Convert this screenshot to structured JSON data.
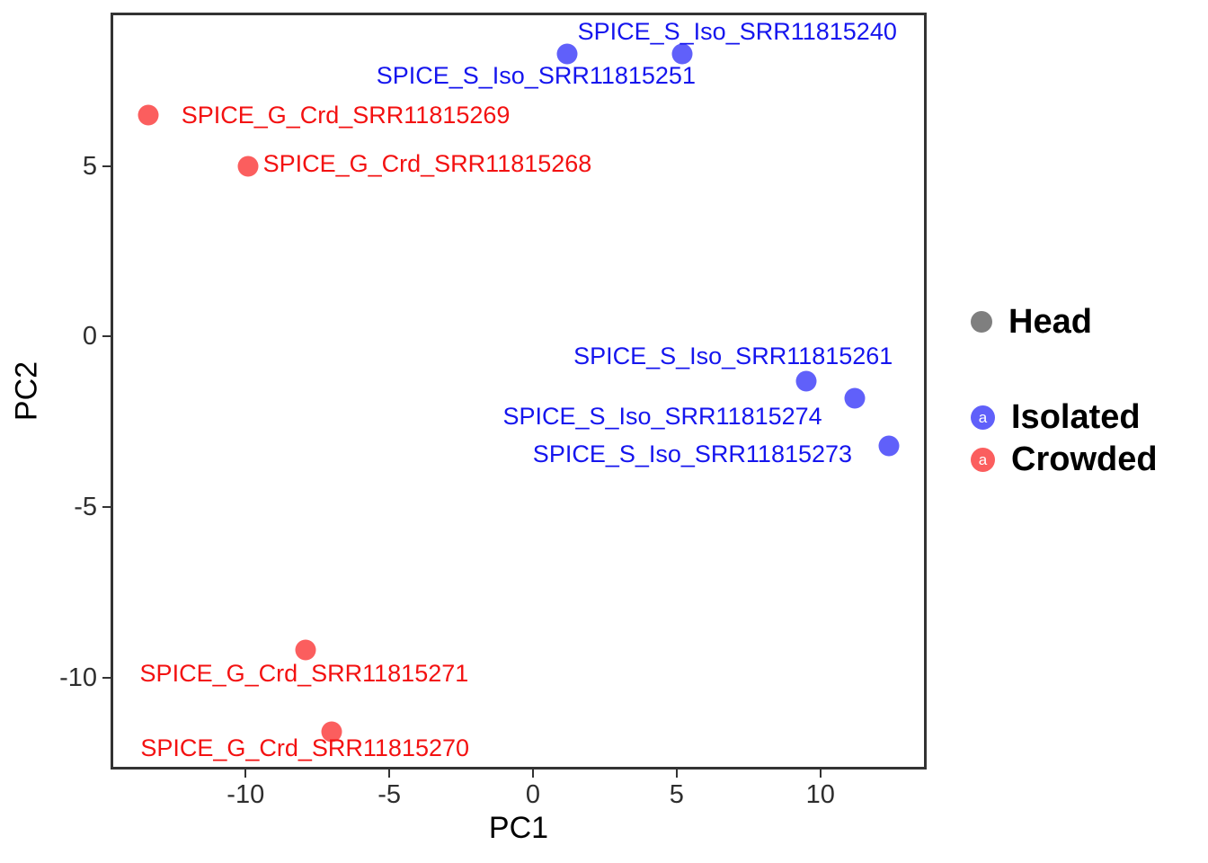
{
  "legend": {
    "head": {
      "label": "Head",
      "swatch_color": "#7F7F7F"
    },
    "entries": [
      {
        "label": "Isolated",
        "glyph": "a",
        "color": "#6060FA"
      },
      {
        "label": "Crowded",
        "glyph": "a",
        "color": "#FB5E5E"
      }
    ]
  },
  "chart_data": {
    "type": "scatter",
    "title": "",
    "xlabel": "PC1",
    "ylabel": "PC2",
    "xlim": [
      -14.7,
      13.7
    ],
    "ylim": [
      -12.7,
      9.5
    ],
    "x_ticks": [
      -10,
      -5,
      0,
      5,
      10
    ],
    "y_ticks": [
      5,
      0,
      -5,
      -10
    ],
    "grid": false,
    "legend_position": "right",
    "series": [
      {
        "name": "Isolated",
        "point_color": "#6060FA",
        "label_color": "#1515EE",
        "points": [
          {
            "sample": "SPICE_S_Iso_SRR11815251",
            "x": 1.2,
            "y": 8.3,
            "label_dx": -35,
            "label_dy": 25
          },
          {
            "sample": "SPICE_S_Iso_SRR11815240",
            "x": 5.2,
            "y": 8.3,
            "label_dx": 61,
            "label_dy": -24
          },
          {
            "sample": "SPICE_S_Iso_SRR11815261",
            "x": 9.5,
            "y": -1.3,
            "label_dx": -81,
            "label_dy": -27
          },
          {
            "sample": "SPICE_S_Iso_SRR11815274",
            "x": 11.2,
            "y": -1.8,
            "label_dx": -214,
            "label_dy": 21
          },
          {
            "sample": "SPICE_S_Iso_SRR11815273",
            "x": 12.4,
            "y": -3.2,
            "label_dx": -219,
            "label_dy": 10
          }
        ]
      },
      {
        "name": "Crowded",
        "point_color": "#FB5E5E",
        "label_color": "#F31111",
        "points": [
          {
            "sample": "SPICE_G_Crd_SRR11815269",
            "x": -13.4,
            "y": 6.5,
            "label_dx": 220,
            "label_dy": 1
          },
          {
            "sample": "SPICE_G_Crd_SRR11815268",
            "x": -9.9,
            "y": 5.0,
            "label_dx": 199,
            "label_dy": -2
          },
          {
            "sample": "SPICE_G_Crd_SRR11815271",
            "x": -7.9,
            "y": -9.2,
            "label_dx": -2,
            "label_dy": 27
          },
          {
            "sample": "SPICE_G_Crd_SRR11815270",
            "x": -7.0,
            "y": -11.6,
            "label_dx": -30,
            "label_dy": 19
          }
        ]
      }
    ]
  }
}
